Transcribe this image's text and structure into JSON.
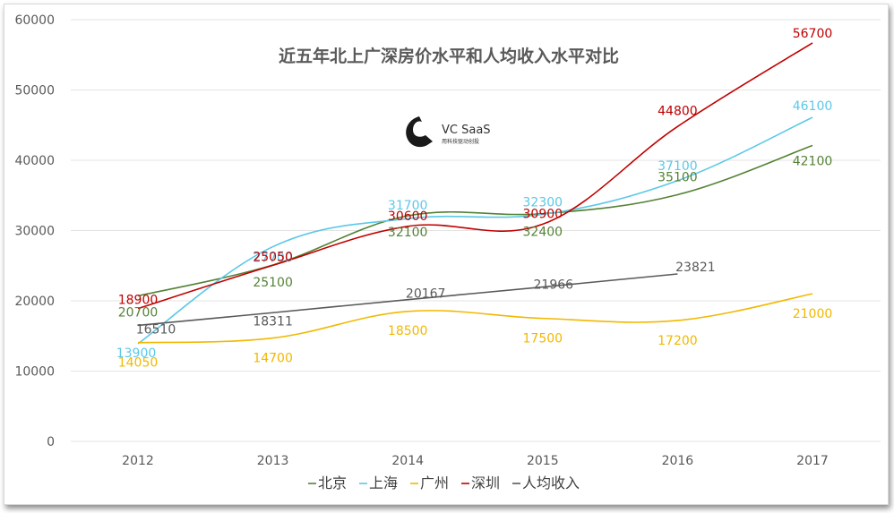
{
  "chart_data": {
    "type": "line",
    "title": "近五年北上广深房价水平和人均收入水平对比",
    "categories": [
      "2012",
      "2013",
      "2014",
      "2015",
      "2016",
      "2017"
    ],
    "ylim": [
      0,
      60000
    ],
    "yticks": [
      0,
      10000,
      20000,
      30000,
      40000,
      50000,
      60000
    ],
    "xlabel": "",
    "ylabel": "",
    "grid": true,
    "legend_position": "bottom",
    "series": [
      {
        "name": "北京",
        "color": "#548235",
        "values": [
          20700,
          25100,
          32100,
          32400,
          35100,
          42100
        ]
      },
      {
        "name": "上海",
        "color": "#5BC8E8",
        "values": [
          13900,
          27700,
          31700,
          32300,
          37100,
          46100
        ]
      },
      {
        "name": "广州",
        "color": "#F2B800",
        "values": [
          14050,
          14700,
          18500,
          17500,
          17200,
          21000
        ]
      },
      {
        "name": "深圳",
        "color": "#C00000",
        "values": [
          18900,
          25050,
          30600,
          30900,
          44800,
          56700
        ]
      },
      {
        "name": "人均收入",
        "color": "#595959",
        "values": [
          16510,
          18311,
          20167,
          21966,
          23821,
          null
        ]
      }
    ]
  },
  "watermark": {
    "brand": "VC  SaaS",
    "tagline": "用科技驱动创投"
  }
}
